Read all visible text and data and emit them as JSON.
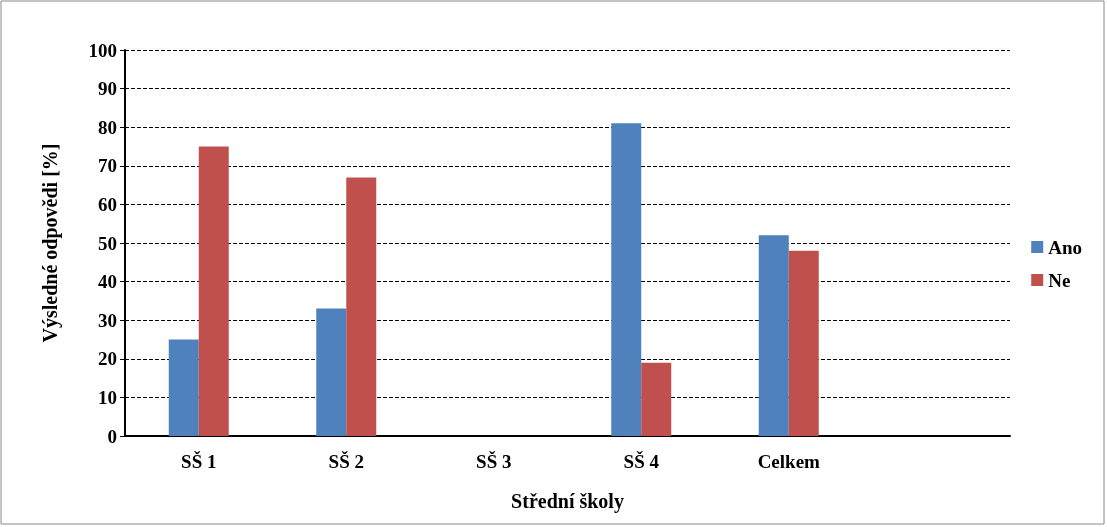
{
  "chart_data": {
    "type": "bar",
    "xlabel": "Střední školy",
    "ylabel": "Výsledné odpovědi [%]",
    "categories": [
      "SŠ 1",
      "SŠ 2",
      "SŠ 3",
      "SŠ 4",
      "Celkem",
      null
    ],
    "series": [
      {
        "name": "Ano",
        "color": "#4f81bd",
        "values": [
          25,
          33,
          null,
          81,
          52,
          null
        ]
      },
      {
        "name": "Ne",
        "color": "#c0504d",
        "values": [
          75,
          67,
          null,
          19,
          48,
          null
        ]
      }
    ],
    "ylim": [
      0,
      100
    ],
    "yticks": [
      0,
      10,
      20,
      30,
      40,
      50,
      60,
      70,
      80,
      90,
      100
    ],
    "grid": "y",
    "legend": "right"
  }
}
